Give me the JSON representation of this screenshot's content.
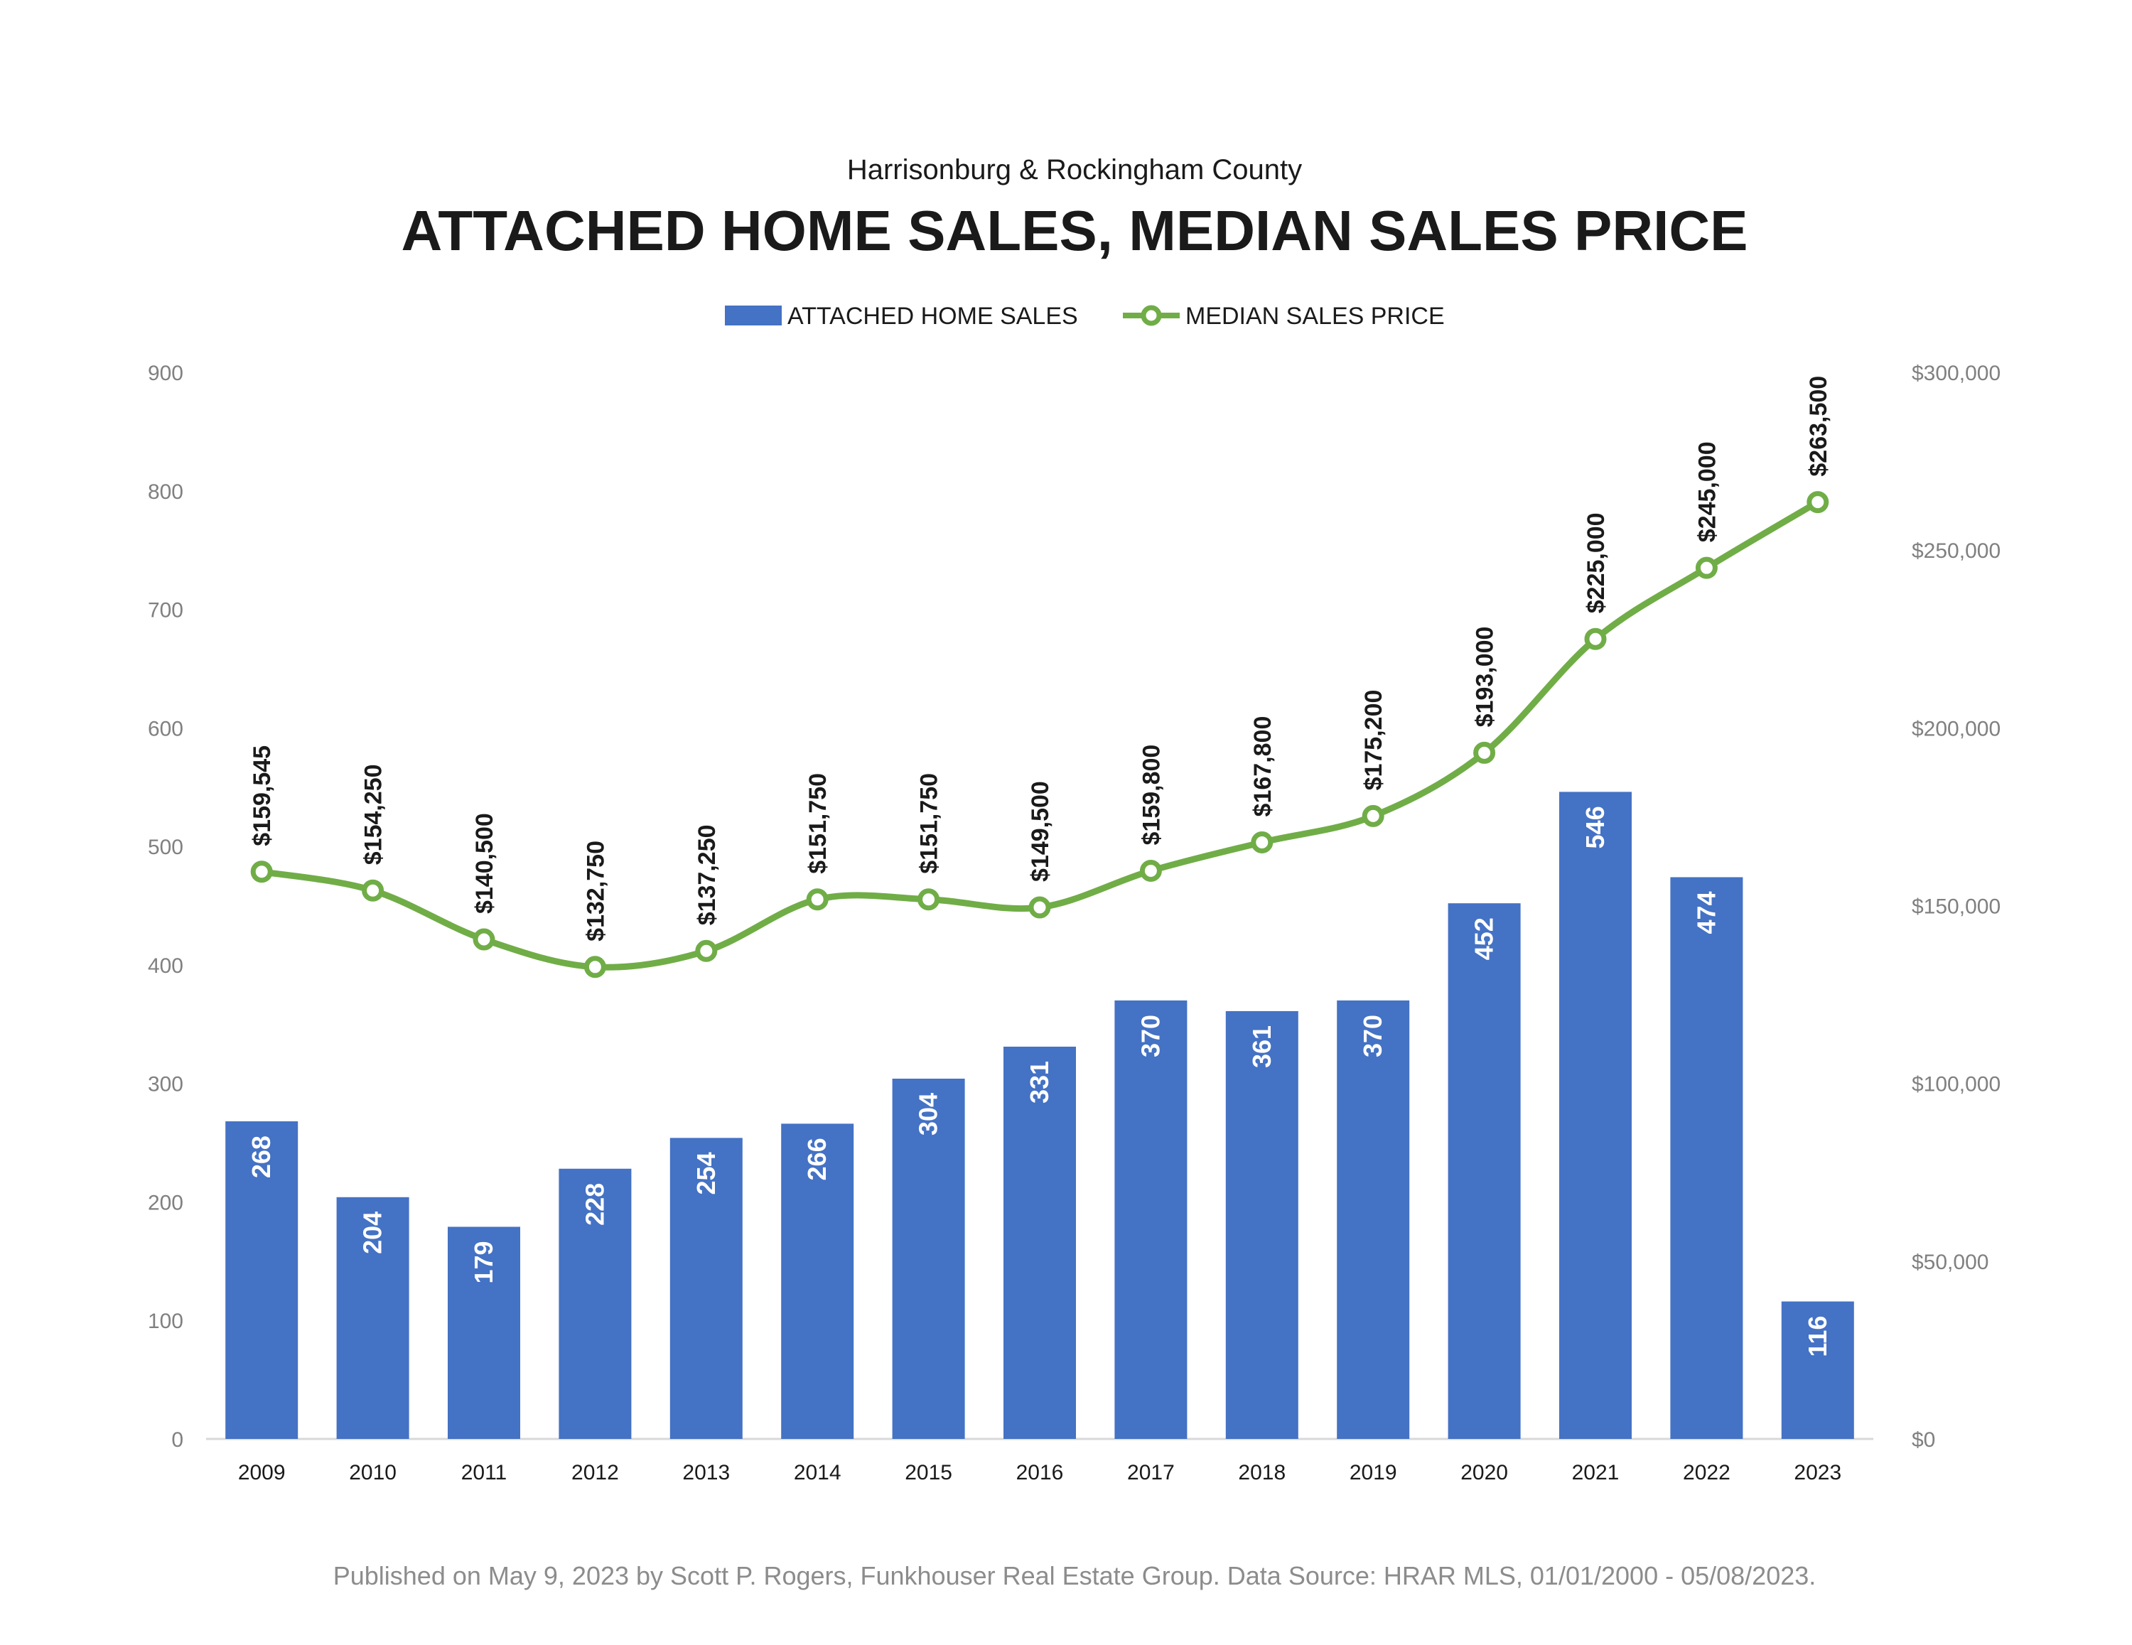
{
  "header": {
    "subtitle": "Harrisonburg & Rockingham County",
    "title": "ATTACHED HOME SALES, MEDIAN SALES PRICE"
  },
  "legend": {
    "bars_label": "ATTACHED HOME SALES",
    "line_label": "MEDIAN SALES PRICE"
  },
  "footnote": "Published on May 9, 2023 by Scott P. Rogers, Funkhouser Real Estate Group. Data Source: HRAR MLS, 01/01/2000 - 05/08/2023.",
  "colors": {
    "bar": "#4472C4",
    "line": "#70AD47",
    "axis_text": "#808080",
    "outside_label": "#8C8C8C"
  },
  "chart_data": {
    "type": "bar",
    "categories": [
      "2009",
      "2010",
      "2011",
      "2012",
      "2013",
      "2014",
      "2015",
      "2016",
      "2017",
      "2018",
      "2019",
      "2020",
      "2021",
      "2022",
      "2023"
    ],
    "series": [
      {
        "name": "ATTACHED HOME SALES",
        "type": "bar",
        "axis": "left",
        "values": [
          268,
          204,
          179,
          228,
          254,
          266,
          304,
          331,
          370,
          361,
          370,
          452,
          546,
          474,
          116
        ],
        "labels": [
          "268",
          "204",
          "179",
          "228",
          "254",
          "266",
          "304",
          "331",
          "370",
          "361",
          "370",
          "452",
          "546",
          "474",
          "116"
        ]
      },
      {
        "name": "MEDIAN SALES PRICE",
        "type": "line",
        "axis": "right",
        "values": [
          159545,
          154250,
          140500,
          132750,
          137250,
          151750,
          151750,
          149500,
          159800,
          167800,
          175200,
          193000,
          225000,
          245000,
          263500
        ],
        "labels": [
          "$159,545",
          "$154,250",
          "$140,500",
          "$132,750",
          "$137,250",
          "$151,750",
          "$151,750",
          "$149,500",
          "$159,800",
          "$167,800",
          "$175,200",
          "$193,000",
          "$225,000",
          "$245,000",
          "$263,500"
        ]
      }
    ],
    "left_axis": {
      "ylim": [
        0,
        900
      ],
      "ticks": [
        "0",
        "100",
        "200",
        "300",
        "400",
        "500",
        "600",
        "700",
        "800",
        "900"
      ]
    },
    "right_axis": {
      "ylim": [
        0,
        300000
      ],
      "ticks": [
        "$0",
        "$50,000",
        "$100,000",
        "$150,000",
        "$200,000",
        "$250,000",
        "$300,000"
      ]
    },
    "grid": false,
    "legend_position": "top-center"
  }
}
